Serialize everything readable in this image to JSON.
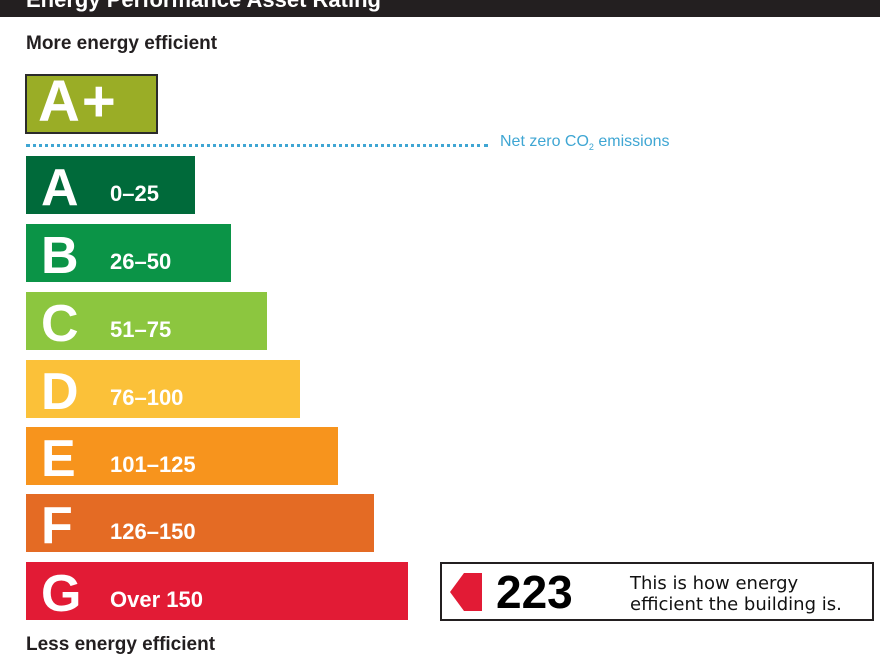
{
  "header": {
    "title": "Energy Performance Asset Rating"
  },
  "scale": {
    "top_label": "More energy efficient",
    "bottom_label": "Less energy efficient",
    "aplus_label": "A+",
    "net_zero": {
      "text": "Net zero CO",
      "subscript": "2",
      "suffix": " emissions",
      "color": "#3fa6d3"
    },
    "bands": [
      {
        "letter": "A",
        "range": "0–25",
        "color": "#006a3a"
      },
      {
        "letter": "B",
        "range": "26–50",
        "color": "#0b9447"
      },
      {
        "letter": "C",
        "range": "51–75",
        "color": "#8cc63f"
      },
      {
        "letter": "D",
        "range": "76–100",
        "color": "#fbc139"
      },
      {
        "letter": "E",
        "range": "101–125",
        "color": "#f7941d"
      },
      {
        "letter": "F",
        "range": "126–150",
        "color": "#e46b24"
      },
      {
        "letter": "G",
        "range": "Over 150",
        "color": "#e21b35"
      }
    ]
  },
  "rating": {
    "value": "223",
    "caption": "This is how energy efficient the building is.",
    "arrow_color": "#e21b35"
  }
}
